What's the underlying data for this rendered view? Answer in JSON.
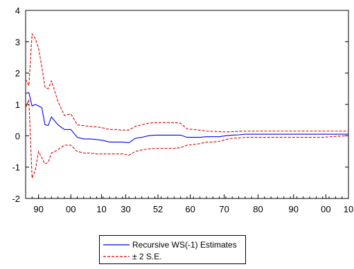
{
  "chart_data": {
    "type": "line",
    "title": "",
    "xlabel": "",
    "ylabel": "",
    "ylim": [
      -2,
      4
    ],
    "yticks": [
      "4",
      "3",
      "2",
      "1",
      "0",
      "-1",
      "-2"
    ],
    "ytick_values": [
      4,
      3,
      2,
      1,
      0,
      -1,
      -2
    ],
    "xlim": [
      0,
      100
    ],
    "xticks": [
      {
        "label": "90",
        "value": 4
      },
      {
        "label": "00",
        "value": 14
      },
      {
        "label": "10",
        "value": 23.5
      },
      {
        "label": "30",
        "value": 31
      },
      {
        "label": "52",
        "value": 41
      },
      {
        "label": "60",
        "value": 51
      },
      {
        "label": "70",
        "value": 61.5
      },
      {
        "label": "80",
        "value": 72
      },
      {
        "label": "90",
        "value": 83
      },
      {
        "label": "00",
        "value": 93
      },
      {
        "label": "10",
        "value": 103
      }
    ],
    "legend_placement": "bottom-center",
    "grid": false,
    "x": [
      0,
      1,
      2,
      3,
      4,
      5,
      6,
      7,
      8,
      10,
      12,
      14,
      16,
      18,
      20,
      22,
      24,
      26,
      28,
      30,
      32,
      34,
      36,
      38,
      40,
      42,
      44,
      46,
      48,
      50,
      52,
      54,
      56,
      58,
      60,
      62,
      64,
      66,
      68,
      70,
      72,
      74,
      76,
      78,
      80,
      84,
      88,
      92,
      96,
      100
    ],
    "series": [
      {
        "name": "Recursive WS(-1) Estimates",
        "color": "#0000ee",
        "style": "solid",
        "values": [
          1.35,
          1.38,
          0.95,
          1.0,
          0.95,
          0.9,
          0.35,
          0.33,
          0.6,
          0.35,
          0.2,
          0.2,
          -0.05,
          -0.1,
          -0.1,
          -0.12,
          -0.15,
          -0.2,
          -0.2,
          -0.2,
          -0.22,
          -0.08,
          -0.05,
          0.0,
          0.02,
          0.02,
          0.02,
          0.02,
          0.02,
          -0.05,
          -0.05,
          -0.05,
          -0.03,
          -0.03,
          -0.03,
          0.0,
          0.02,
          0.03,
          0.05,
          0.05,
          0.05,
          0.05,
          0.05,
          0.05,
          0.05,
          0.05,
          0.05,
          0.05,
          0.05,
          0.05
        ]
      },
      {
        "name": "± 2 S.E.",
        "color": "#dd0000",
        "style": "dashed",
        "values": [
          1.8,
          1.6,
          3.25,
          3.1,
          2.8,
          2.2,
          1.55,
          1.5,
          1.75,
          1.1,
          0.65,
          0.7,
          0.35,
          0.32,
          0.3,
          0.28,
          0.25,
          0.2,
          0.2,
          0.18,
          0.18,
          0.3,
          0.35,
          0.4,
          0.42,
          0.42,
          0.42,
          0.42,
          0.4,
          0.22,
          0.2,
          0.18,
          0.15,
          0.14,
          0.13,
          0.12,
          0.13,
          0.14,
          0.15,
          0.15,
          0.15,
          0.15,
          0.15,
          0.15,
          0.15,
          0.15,
          0.15,
          0.15,
          0.15,
          0.15
        ]
      },
      {
        "name": "± 2 S.E.",
        "color": "#dd0000",
        "style": "dashed",
        "values": [
          0.9,
          1.15,
          -1.35,
          -1.1,
          -0.5,
          -0.7,
          -0.9,
          -0.85,
          -0.55,
          -0.45,
          -0.3,
          -0.3,
          -0.5,
          -0.55,
          -0.55,
          -0.58,
          -0.58,
          -0.58,
          -0.58,
          -0.58,
          -0.62,
          -0.5,
          -0.45,
          -0.42,
          -0.4,
          -0.4,
          -0.4,
          -0.4,
          -0.38,
          -0.3,
          -0.28,
          -0.25,
          -0.2,
          -0.2,
          -0.18,
          -0.12,
          -0.08,
          -0.07,
          -0.05,
          -0.05,
          -0.05,
          -0.05,
          -0.05,
          -0.05,
          -0.05,
          -0.05,
          -0.05,
          -0.05,
          -0.02,
          0.0
        ]
      }
    ]
  },
  "legend": {
    "entries": [
      {
        "label": "Recursive WS(-1) Estimates",
        "color": "#0000ee",
        "style": "solid"
      },
      {
        "label": "± 2 S.E.",
        "color": "#dd0000",
        "style": "dashed"
      }
    ]
  }
}
